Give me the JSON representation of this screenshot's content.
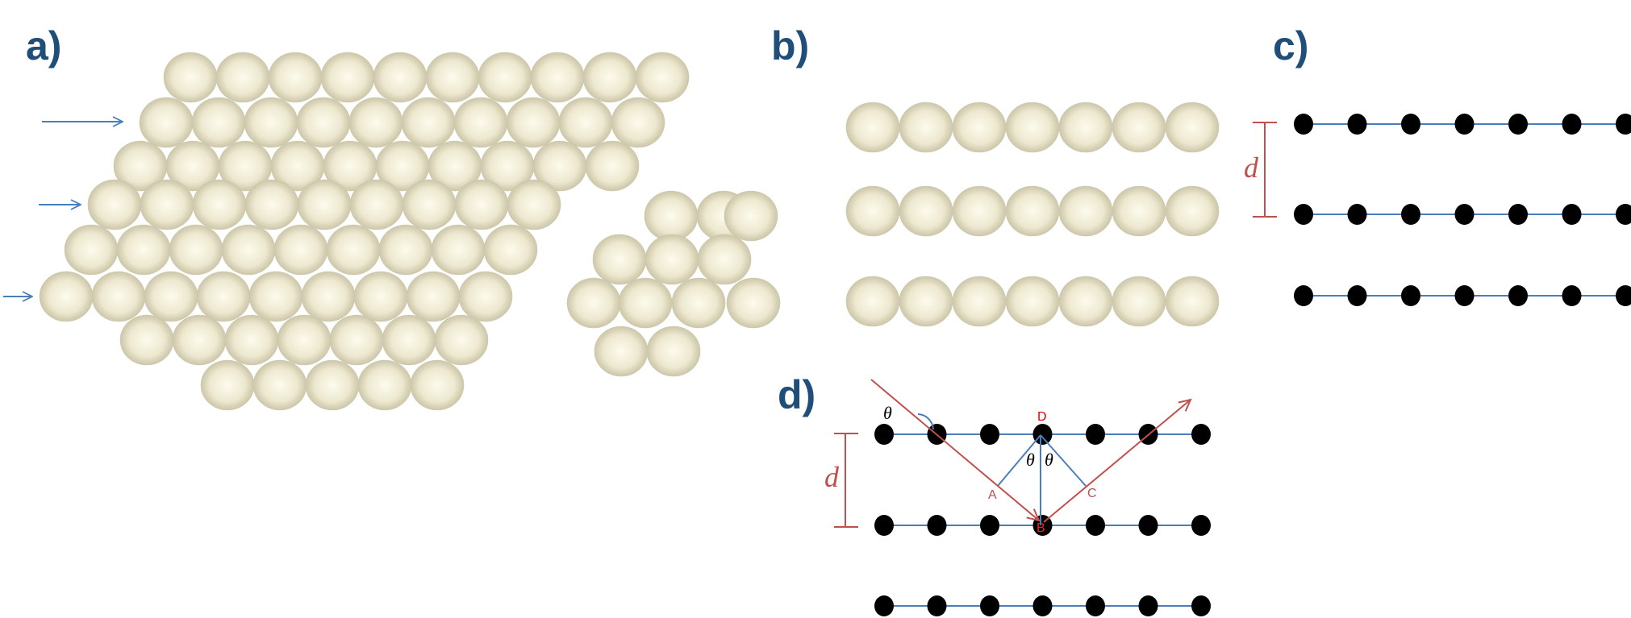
{
  "panels": {
    "a": {
      "label": "a)"
    },
    "b": {
      "label": "b)"
    },
    "c": {
      "label": "c)",
      "spacing_label": "d"
    },
    "d": {
      "label": "d)",
      "spacing_label": "d",
      "angle_symbol": "θ",
      "points": {
        "A": "A",
        "B": "B",
        "C": "C",
        "D": "D"
      }
    }
  },
  "colors": {
    "panel_label": "#1f4e79",
    "lattice_line": "#4a7ebb",
    "red_annotation": "#c0504d",
    "atom_fill_center": "#fbf8e8",
    "atom_fill_edge": "#c9c4a8",
    "lattice_point": "#000000"
  }
}
